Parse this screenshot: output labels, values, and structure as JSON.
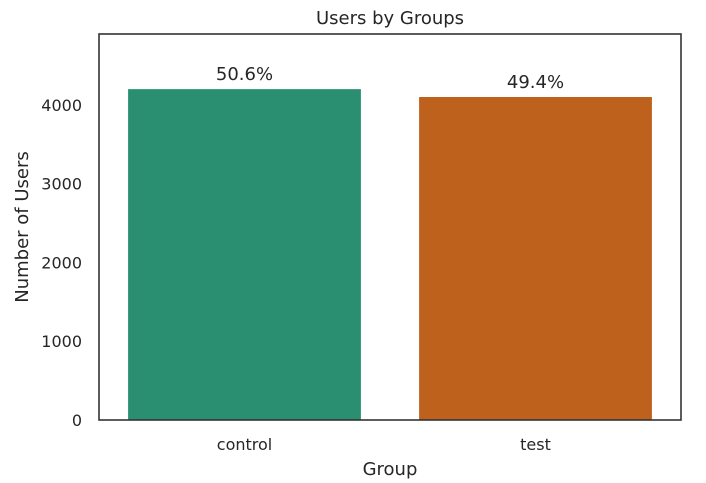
{
  "chart_data": {
    "type": "bar",
    "title": "Users by Groups",
    "xlabel": "Group",
    "ylabel": "Number of Users",
    "categories": [
      "control",
      "test"
    ],
    "values": [
      4200,
      4100
    ],
    "data_labels": [
      "50.6%",
      "49.4%"
    ],
    "colors": [
      "#2a8f71",
      "#bd611d"
    ],
    "yticks": [
      0,
      1000,
      2000,
      3000,
      4000
    ],
    "ylim": [
      0,
      4900
    ],
    "grid": false,
    "legend": "none"
  }
}
